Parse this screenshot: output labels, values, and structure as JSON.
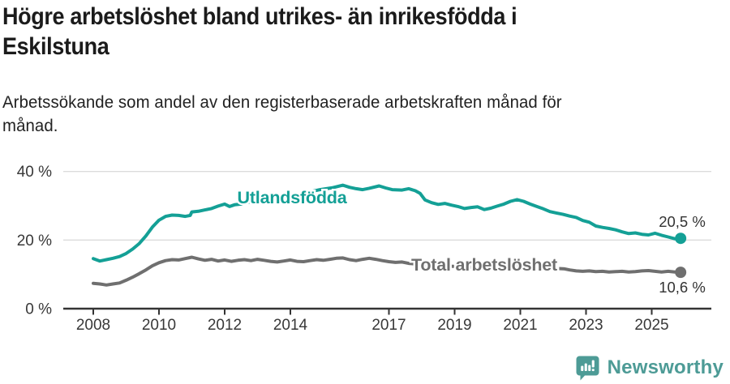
{
  "chart_data": {
    "type": "line",
    "title": "Högre arbetslöshet bland utrikes- än inrikesfödda i\nEskilstuna",
    "subtitle": "Arbetssökande som andel av den registerbaserade arbetskraften månad för\nmånad.",
    "unit": "%",
    "grid": true,
    "x_axis": {
      "ticks": [
        2008,
        2010,
        2012,
        2014,
        2017,
        2019,
        2021,
        2023,
        2025
      ],
      "range": [
        2007.1,
        2026.8
      ]
    },
    "y_axis": {
      "ticks": [
        "0 %",
        "20 %",
        "40 %"
      ],
      "tick_values": [
        0,
        20,
        40
      ],
      "range": [
        0,
        42
      ]
    },
    "series": [
      {
        "name": "Utlandsfödda",
        "color": "#14a096",
        "end_label": "20,5 %",
        "end_value": 20.5,
        "points": [
          [
            2008.0,
            14.6
          ],
          [
            2008.2,
            13.9
          ],
          [
            2008.4,
            14.3
          ],
          [
            2008.6,
            14.7
          ],
          [
            2008.8,
            15.2
          ],
          [
            2009.0,
            16.1
          ],
          [
            2009.2,
            17.4
          ],
          [
            2009.4,
            19.0
          ],
          [
            2009.6,
            21.2
          ],
          [
            2009.8,
            23.8
          ],
          [
            2010.0,
            25.8
          ],
          [
            2010.2,
            26.9
          ],
          [
            2010.4,
            27.3
          ],
          [
            2010.6,
            27.2
          ],
          [
            2010.8,
            26.9
          ],
          [
            2010.95,
            27.2
          ],
          [
            2011.0,
            28.2
          ],
          [
            2011.2,
            28.4
          ],
          [
            2011.4,
            28.8
          ],
          [
            2011.6,
            29.2
          ],
          [
            2011.8,
            29.9
          ],
          [
            2012.0,
            30.5
          ],
          [
            2012.15,
            29.8
          ],
          [
            2012.3,
            30.3
          ],
          [
            2012.5,
            30.5
          ],
          [
            2012.7,
            31.0
          ],
          [
            2012.9,
            31.4
          ],
          [
            2013.1,
            31.2
          ],
          [
            2013.3,
            31.7
          ],
          [
            2013.5,
            32.1
          ],
          [
            2013.7,
            32.5
          ],
          [
            2013.9,
            32.9
          ],
          [
            2014.1,
            32.7
          ],
          [
            2014.3,
            33.3
          ],
          [
            2014.5,
            33.8
          ],
          [
            2014.7,
            34.3
          ],
          [
            2014.9,
            34.7
          ],
          [
            2015.1,
            35.0
          ],
          [
            2015.3,
            35.3
          ],
          [
            2015.6,
            36.0
          ],
          [
            2015.8,
            35.4
          ],
          [
            2016.0,
            35.0
          ],
          [
            2016.2,
            34.7
          ],
          [
            2016.4,
            35.1
          ],
          [
            2016.7,
            35.8
          ],
          [
            2016.9,
            35.2
          ],
          [
            2017.1,
            34.7
          ],
          [
            2017.4,
            34.6
          ],
          [
            2017.6,
            35.0
          ],
          [
            2017.8,
            34.4
          ],
          [
            2017.95,
            33.6
          ],
          [
            2018.1,
            31.7
          ],
          [
            2018.3,
            30.9
          ],
          [
            2018.5,
            30.4
          ],
          [
            2018.7,
            30.7
          ],
          [
            2018.9,
            30.2
          ],
          [
            2019.1,
            29.8
          ],
          [
            2019.3,
            29.2
          ],
          [
            2019.5,
            29.5
          ],
          [
            2019.7,
            29.7
          ],
          [
            2019.9,
            28.9
          ],
          [
            2020.1,
            29.3
          ],
          [
            2020.3,
            29.9
          ],
          [
            2020.5,
            30.5
          ],
          [
            2020.7,
            31.3
          ],
          [
            2020.9,
            31.8
          ],
          [
            2021.1,
            31.3
          ],
          [
            2021.3,
            30.5
          ],
          [
            2021.5,
            29.8
          ],
          [
            2021.7,
            29.1
          ],
          [
            2021.9,
            28.3
          ],
          [
            2022.1,
            27.9
          ],
          [
            2022.3,
            27.5
          ],
          [
            2022.5,
            27.0
          ],
          [
            2022.7,
            26.6
          ],
          [
            2022.9,
            25.7
          ],
          [
            2023.1,
            25.2
          ],
          [
            2023.3,
            24.1
          ],
          [
            2023.5,
            23.7
          ],
          [
            2023.7,
            23.4
          ],
          [
            2023.9,
            23.0
          ],
          [
            2024.1,
            22.4
          ],
          [
            2024.3,
            21.9
          ],
          [
            2024.5,
            22.1
          ],
          [
            2024.7,
            21.7
          ],
          [
            2024.9,
            21.5
          ],
          [
            2025.1,
            22.0
          ],
          [
            2025.3,
            21.4
          ],
          [
            2025.5,
            20.9
          ],
          [
            2025.7,
            20.4
          ],
          [
            2025.88,
            20.5
          ]
        ]
      },
      {
        "name": "Total arbetslöshet",
        "color": "#6f6f6f",
        "end_label": "10,6 %",
        "end_value": 10.6,
        "points": [
          [
            2008.0,
            7.4
          ],
          [
            2008.2,
            7.2
          ],
          [
            2008.4,
            6.9
          ],
          [
            2008.6,
            7.2
          ],
          [
            2008.8,
            7.5
          ],
          [
            2009.0,
            8.3
          ],
          [
            2009.2,
            9.2
          ],
          [
            2009.4,
            10.2
          ],
          [
            2009.6,
            11.3
          ],
          [
            2009.8,
            12.5
          ],
          [
            2010.0,
            13.4
          ],
          [
            2010.2,
            14.0
          ],
          [
            2010.4,
            14.3
          ],
          [
            2010.6,
            14.2
          ],
          [
            2010.8,
            14.6
          ],
          [
            2011.0,
            15.0
          ],
          [
            2011.2,
            14.5
          ],
          [
            2011.4,
            14.1
          ],
          [
            2011.6,
            14.4
          ],
          [
            2011.8,
            13.9
          ],
          [
            2012.0,
            14.2
          ],
          [
            2012.2,
            13.8
          ],
          [
            2012.4,
            14.1
          ],
          [
            2012.6,
            14.3
          ],
          [
            2012.8,
            14.0
          ],
          [
            2013.0,
            14.4
          ],
          [
            2013.2,
            14.1
          ],
          [
            2013.4,
            13.8
          ],
          [
            2013.6,
            13.6
          ],
          [
            2013.8,
            13.9
          ],
          [
            2014.0,
            14.2
          ],
          [
            2014.2,
            13.8
          ],
          [
            2014.4,
            13.7
          ],
          [
            2014.6,
            14.0
          ],
          [
            2014.8,
            14.3
          ],
          [
            2015.0,
            14.1
          ],
          [
            2015.2,
            14.4
          ],
          [
            2015.4,
            14.7
          ],
          [
            2015.6,
            14.8
          ],
          [
            2015.8,
            14.3
          ],
          [
            2016.0,
            14.0
          ],
          [
            2016.2,
            14.4
          ],
          [
            2016.4,
            14.7
          ],
          [
            2016.6,
            14.4
          ],
          [
            2016.8,
            14.0
          ],
          [
            2017.0,
            13.7
          ],
          [
            2017.2,
            13.5
          ],
          [
            2017.4,
            13.6
          ],
          [
            2017.6,
            13.2
          ],
          [
            2018.0,
            12.9
          ],
          [
            2018.5,
            12.6
          ],
          [
            2019.0,
            12.3
          ],
          [
            2019.5,
            12.1
          ],
          [
            2020.0,
            12.0
          ],
          [
            2020.4,
            12.4
          ],
          [
            2020.8,
            12.6
          ],
          [
            2021.2,
            12.3
          ],
          [
            2021.6,
            12.0
          ],
          [
            2022.0,
            11.8
          ],
          [
            2022.35,
            11.6
          ],
          [
            2022.5,
            11.3
          ],
          [
            2022.7,
            11.0
          ],
          [
            2022.9,
            10.9
          ],
          [
            2023.1,
            11.0
          ],
          [
            2023.3,
            10.8
          ],
          [
            2023.5,
            10.9
          ],
          [
            2023.7,
            10.7
          ],
          [
            2023.9,
            10.8
          ],
          [
            2024.1,
            10.9
          ],
          [
            2024.3,
            10.7
          ],
          [
            2024.5,
            10.8
          ],
          [
            2024.7,
            11.0
          ],
          [
            2024.9,
            11.1
          ],
          [
            2025.1,
            10.9
          ],
          [
            2025.3,
            10.7
          ],
          [
            2025.5,
            10.9
          ],
          [
            2025.7,
            10.7
          ],
          [
            2025.88,
            10.6
          ]
        ]
      }
    ],
    "colors": {
      "accent_teal": "#14a096",
      "line_gray": "#6f6f6f",
      "axis_text": "#383838",
      "gridline": "#dcdcdc",
      "axis_line": "#333333"
    }
  },
  "footer": {
    "brand": "Newsworthy",
    "logo_icon": "bar-chart-speech-bubble-icon",
    "brand_color": "#4d9b96"
  }
}
